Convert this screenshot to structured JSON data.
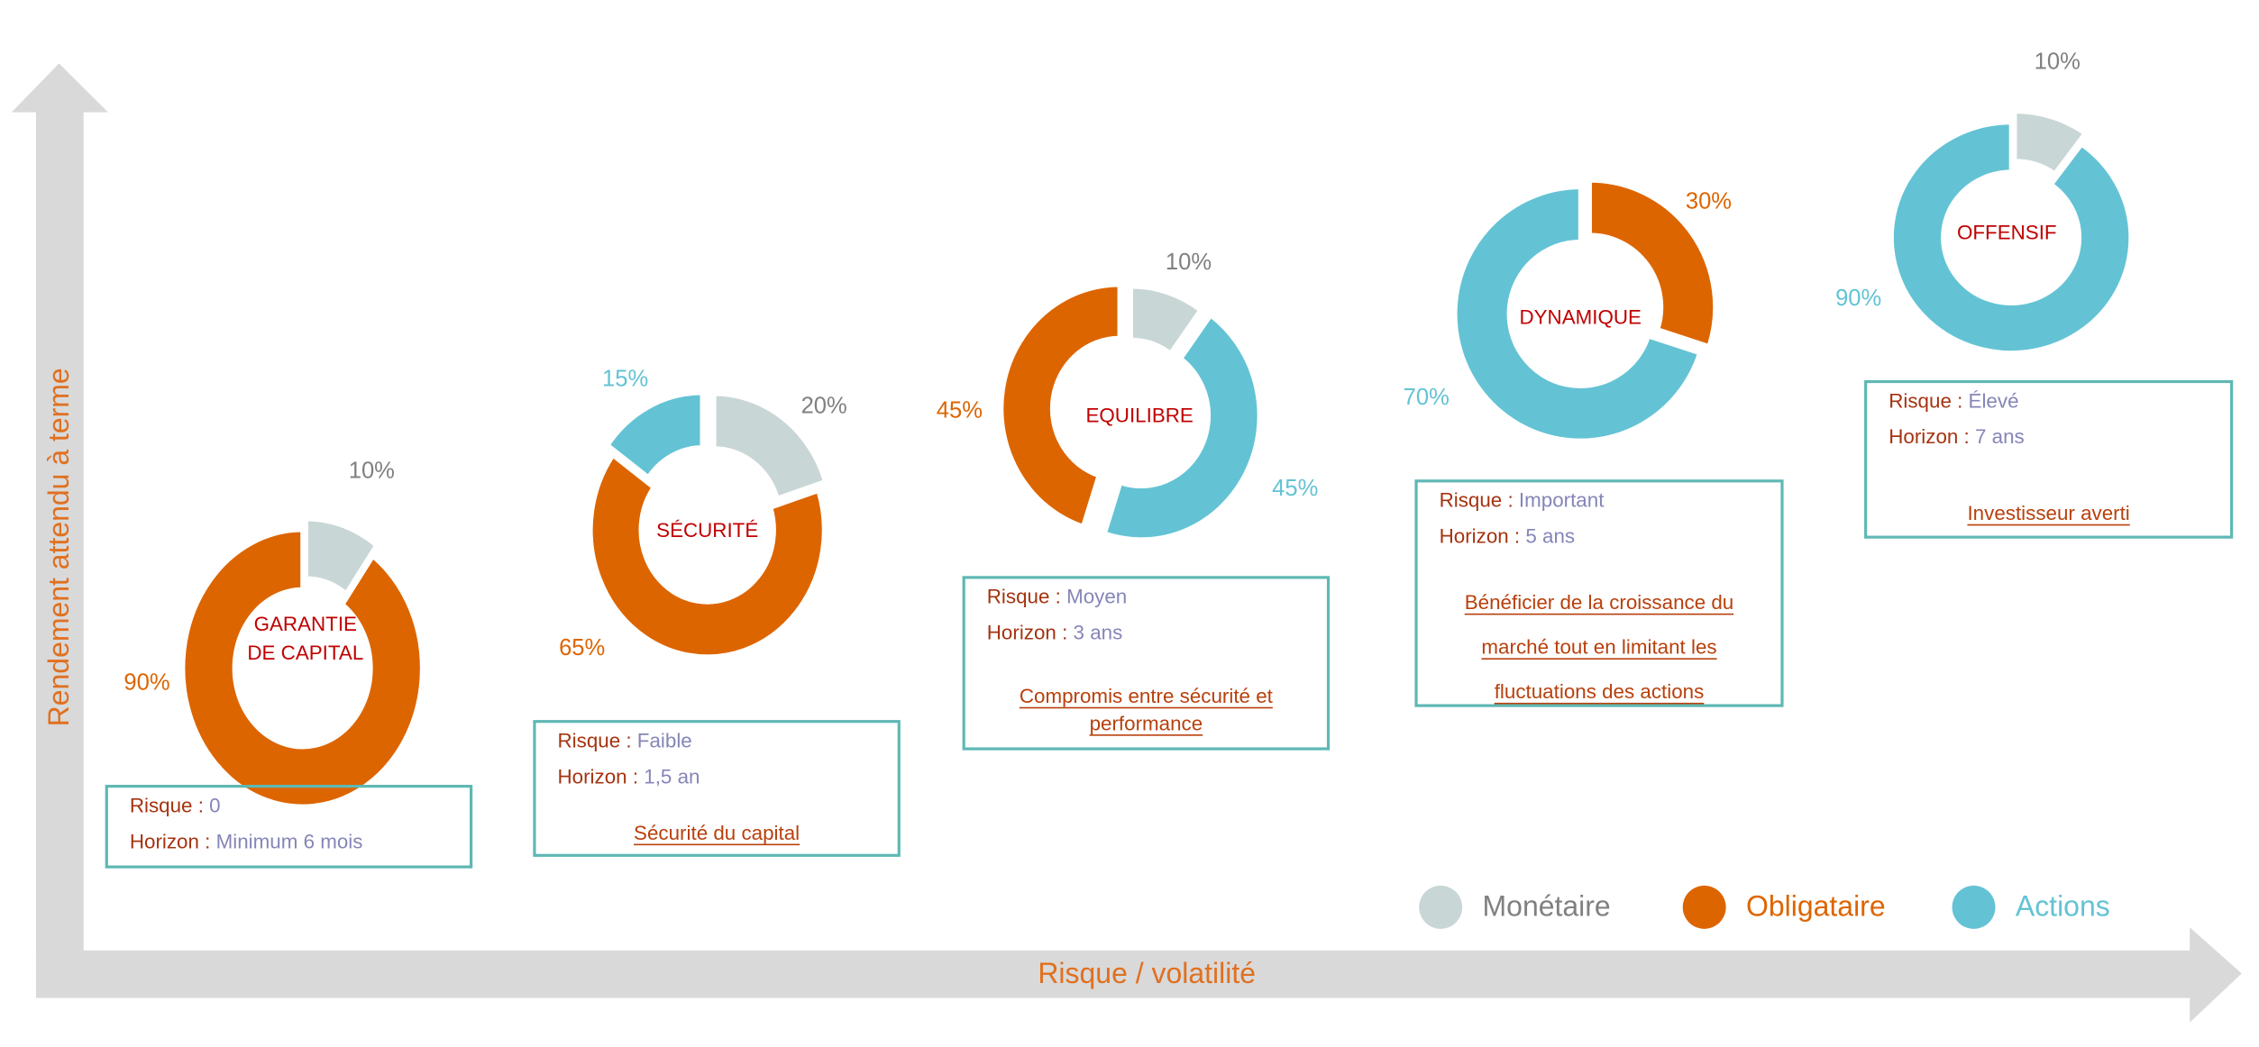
{
  "colors": {
    "monetaire": "#c8d6d6",
    "obligataire": "#dd6500",
    "actions": "#63c3d4",
    "axis": "#d9d9d9",
    "axis_label": "#e07020",
    "profile_name": "#c00000",
    "box_border": "#5fb8b4",
    "grey_label": "#808080"
  },
  "axes": {
    "y_label": "Rendement attendu à terme",
    "x_label": "Risque / volatilité"
  },
  "legend": [
    {
      "label": "Monétaire",
      "key": "monetaire",
      "text_color": "#808080"
    },
    {
      "label": "Obligataire",
      "key": "obligataire",
      "text_color": "#dd6500"
    },
    {
      "label": "Actions",
      "key": "actions",
      "text_color": "#63c3d4"
    }
  ],
  "chart_data": {
    "type": "pie",
    "donuts": [
      {
        "name_lines": [
          "GARANTIE",
          "DE CAPITAL"
        ],
        "slices": [
          {
            "key": "monetaire",
            "value": 10,
            "label": "10%",
            "exploded": true
          },
          {
            "key": "obligataire",
            "value": 90,
            "label": "90%"
          }
        ]
      },
      {
        "name_lines": [
          "SÉCURITÉ"
        ],
        "slices": [
          {
            "key": "monetaire",
            "value": 20,
            "label": "20%",
            "exploded": true
          },
          {
            "key": "obligataire",
            "value": 65,
            "label": "65%"
          },
          {
            "key": "actions",
            "value": 15,
            "label": "15%",
            "exploded": true
          }
        ]
      },
      {
        "name_lines": [
          "EQUILIBRE"
        ],
        "slices": [
          {
            "key": "monetaire",
            "value": 10,
            "label": "10%"
          },
          {
            "key": "actions",
            "value": 45,
            "label": "45%",
            "exploded": true
          },
          {
            "key": "obligataire",
            "value": 45,
            "label": "45%",
            "exploded": true
          }
        ]
      },
      {
        "name_lines": [
          "DYNAMIQUE"
        ],
        "slices": [
          {
            "key": "obligataire",
            "value": 30,
            "label": "30%",
            "exploded": true
          },
          {
            "key": "actions",
            "value": 70,
            "label": "70%"
          }
        ]
      },
      {
        "name_lines": [
          "OFFENSIF"
        ],
        "slices": [
          {
            "key": "monetaire",
            "value": 10,
            "label": "10%",
            "exploded": true
          },
          {
            "key": "actions",
            "value": 90,
            "label": "90%"
          }
        ]
      }
    ]
  },
  "profiles": [
    {
      "risk_label": "Risque : ",
      "risk": "0",
      "horizon_label": "Horizon : ",
      "horizon": "Minimum 6 mois",
      "goal_lines": []
    },
    {
      "risk_label": "Risque : ",
      "risk": "Faible",
      "horizon_label": "Horizon : ",
      "horizon": "1,5 an",
      "goal_lines": [
        "Sécurité du capital"
      ]
    },
    {
      "risk_label": "Risque : ",
      "risk": "Moyen",
      "horizon_label": "Horizon : ",
      "horizon": "3 ans",
      "goal_lines": [
        "Compromis entre sécurité et",
        "performance"
      ]
    },
    {
      "risk_label": "Risque : ",
      "risk": "Important",
      "horizon_label": "Horizon : ",
      "horizon": "5 ans",
      "goal_lines": [
        "Bénéficier de la croissance du",
        "marché tout en limitant les",
        "fluctuations des actions"
      ]
    },
    {
      "risk_label": "Risque : ",
      "risk": "Élevé",
      "horizon_label": "Horizon : ",
      "horizon": "7 ans",
      "goal_lines": [
        "Investisseur averti"
      ]
    }
  ]
}
